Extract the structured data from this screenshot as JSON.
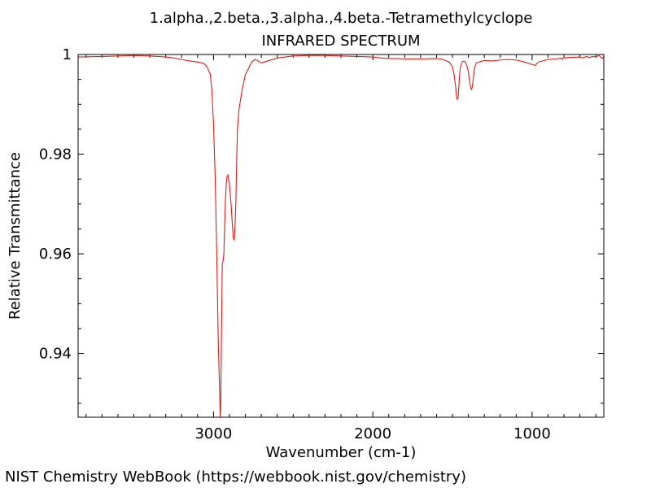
{
  "chart_data": {
    "type": "line",
    "title": "1.alpha.,2.beta.,3.alpha.,4.beta.-Tetramethylcyclope",
    "subtitle": "INFRARED SPECTRUM",
    "xlabel": "Wavenumber (cm-1)",
    "ylabel": "Relative Transmittance",
    "xlim": [
      3850,
      550
    ],
    "ylim": [
      0.9272,
      1.0
    ],
    "x_ticks": [
      3000,
      2000,
      1000
    ],
    "x_tick_labels": [
      "3000",
      "2000",
      "1000"
    ],
    "y_ticks": [
      0.94,
      0.96,
      0.98,
      1.0
    ],
    "y_tick_labels": [
      "0.94",
      "0.96",
      "0.98",
      "1"
    ],
    "grid": false,
    "line_color": "#d9201c",
    "series": [
      {
        "x": [
          3850,
          3700,
          3500,
          3400,
          3300,
          3250,
          3200,
          3150,
          3100,
          3060,
          3040,
          3020,
          3010,
          3000,
          2990,
          2980,
          2970,
          2962,
          2958,
          2955,
          2950,
          2945,
          2940,
          2935,
          2930,
          2925,
          2920,
          2915,
          2910,
          2900,
          2890,
          2880,
          2875,
          2870,
          2866,
          2860,
          2855,
          2850,
          2840,
          2830,
          2820,
          2810,
          2800,
          2780,
          2760,
          2740,
          2720,
          2700,
          2680,
          2600,
          2500,
          2400,
          2300,
          2200,
          2100,
          2000,
          1950,
          1900,
          1850,
          1800,
          1700,
          1600,
          1560,
          1520,
          1500,
          1490,
          1480,
          1475,
          1470,
          1465,
          1460,
          1455,
          1450,
          1440,
          1430,
          1420,
          1410,
          1400,
          1395,
          1390,
          1385,
          1380,
          1375,
          1370,
          1365,
          1360,
          1350,
          1320,
          1300,
          1250,
          1200,
          1150,
          1100,
          1050,
          1020,
          1000,
          980,
          960,
          900,
          850,
          820,
          810,
          800,
          790,
          780,
          700,
          680,
          660,
          640,
          620,
          600,
          580,
          560,
          550
        ],
        "y": [
          0.9995,
          0.9996,
          0.9998,
          0.9997,
          0.9995,
          0.9993,
          0.999,
          0.9987,
          0.9985,
          0.9982,
          0.9975,
          0.996,
          0.9925,
          0.986,
          0.976,
          0.96,
          0.942,
          0.933,
          0.9272,
          0.929,
          0.944,
          0.958,
          0.9585,
          0.96,
          0.966,
          0.971,
          0.974,
          0.9755,
          0.9758,
          0.974,
          0.97,
          0.965,
          0.963,
          0.9628,
          0.965,
          0.97,
          0.978,
          0.985,
          0.989,
          0.991,
          0.993,
          0.9945,
          0.996,
          0.9972,
          0.9985,
          0.999,
          0.9987,
          0.9983,
          0.9985,
          0.9993,
          0.9997,
          0.9998,
          0.9998,
          0.9997,
          0.9996,
          0.9995,
          0.9993,
          0.9992,
          0.9992,
          0.9991,
          0.9991,
          0.9992,
          0.999,
          0.9985,
          0.9975,
          0.996,
          0.9935,
          0.9915,
          0.991,
          0.9913,
          0.9935,
          0.996,
          0.9975,
          0.9985,
          0.9987,
          0.9985,
          0.9978,
          0.9965,
          0.9952,
          0.9942,
          0.9933,
          0.993,
          0.9936,
          0.995,
          0.9965,
          0.9975,
          0.9983,
          0.9986,
          0.9988,
          0.9987,
          0.9989,
          0.999,
          0.9989,
          0.9985,
          0.9982,
          0.998,
          0.9978,
          0.9985,
          0.999,
          0.9991,
          0.9993,
          0.999,
          0.9996,
          0.9992,
          0.9994,
          0.9995,
          0.9993,
          0.9996,
          0.9994,
          0.9996,
          0.9995,
          0.9998,
          0.9992,
          0.9996
        ]
      }
    ]
  },
  "footer": {
    "credit": "NIST Chemistry WebBook (https://webbook.nist.gov/chemistry)"
  }
}
